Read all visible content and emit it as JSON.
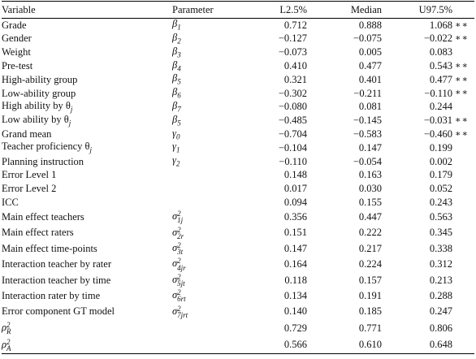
{
  "table": {
    "header": [
      "Variable",
      "Parameter",
      "L2.5%",
      "Median",
      "U97.5%"
    ],
    "rows": [
      {
        "variable": "Grade",
        "parameter": {
          "base": "β",
          "sub": "1"
        },
        "l": "0.712",
        "median": "0.888",
        "u": "1.068",
        "sig": "∗∗"
      },
      {
        "variable": "Gender",
        "parameter": {
          "base": "β",
          "sub": "2"
        },
        "l": "−0.127",
        "median": "−0.075",
        "u": "−0.022",
        "sig": "∗∗"
      },
      {
        "variable": "Weight",
        "parameter": {
          "base": "β",
          "sub": "3"
        },
        "l": "−0.073",
        "median": "0.005",
        "u": "0.083"
      },
      {
        "variable": "Pre-test",
        "parameter": {
          "base": "β",
          "sub": "4"
        },
        "l": "0.410",
        "median": "0.477",
        "u": "0.543",
        "sig": "∗∗"
      },
      {
        "variable": "High-ability group",
        "parameter": {
          "base": "β",
          "sub": "5"
        },
        "l": "0.321",
        "median": "0.401",
        "u": "0.477",
        "sig": "∗∗"
      },
      {
        "variable": "Low-ability group",
        "parameter": {
          "base": "β",
          "sub": "6"
        },
        "l": "−0.302",
        "median": "−0.211",
        "u": "−0.110",
        "sig": "∗∗"
      },
      {
        "variable": {
          "text": "High ability by θ",
          "sub": "j"
        },
        "parameter": {
          "base": "β",
          "sub": "7"
        },
        "l": "−0.080",
        "median": "0.081",
        "u": "0.244"
      },
      {
        "variable": {
          "text": "Low ability by θ",
          "sub": "j"
        },
        "parameter": {
          "base": "β",
          "sub": "5"
        },
        "l": "−0.485",
        "median": "−0.145",
        "u": "−0.031",
        "sig": "∗∗"
      },
      {
        "variable": "Grand mean",
        "parameter": {
          "base": "γ",
          "sub": "0"
        },
        "l": "−0.704",
        "median": "−0.583",
        "u": "−0.460",
        "sig": "∗∗"
      },
      {
        "variable": {
          "text": "Teacher proficiency θ",
          "sub": "j"
        },
        "parameter": {
          "base": "γ",
          "sub": "1"
        },
        "l": "−0.104",
        "median": "0.147",
        "u": "0.199"
      },
      {
        "variable": "Planning instruction",
        "parameter": {
          "base": "γ",
          "sub": "2"
        },
        "l": "−0.110",
        "median": "−0.054",
        "u": "0.002"
      },
      {
        "variable": "Error Level 1",
        "l": "0.148",
        "median": "0.163",
        "u": "0.179"
      },
      {
        "variable": "Error Level 2",
        "l": "0.017",
        "median": "0.030",
        "u": "0.052"
      },
      {
        "variable": "ICC",
        "l": "0.094",
        "median": "0.155",
        "u": "0.243"
      },
      {
        "variable": "Main effect teachers",
        "parameter": {
          "base": "σ",
          "sup": "2",
          "sub": "1j"
        },
        "l": "0.356",
        "median": "0.447",
        "u": "0.563"
      },
      {
        "variable": "Main effect raters",
        "parameter": {
          "base": "σ",
          "sup": "2",
          "sub": "2r"
        },
        "l": "0.151",
        "median": "0.222",
        "u": "0.345"
      },
      {
        "variable": "Main effect time-points",
        "parameter": {
          "base": "σ",
          "sup": "2",
          "sub": "3t"
        },
        "l": "0.147",
        "median": "0.217",
        "u": "0.338"
      },
      {
        "variable": "Interaction teacher by rater",
        "parameter": {
          "base": "σ",
          "sup": "2",
          "sub": "4jr"
        },
        "l": "0.164",
        "median": "0.224",
        "u": "0.312"
      },
      {
        "variable": "Interaction teacher by time",
        "parameter": {
          "base": "σ",
          "sup": "2",
          "sub": "5jt"
        },
        "l": "0.118",
        "median": "0.157",
        "u": "0.213"
      },
      {
        "variable": "Interaction rater by time",
        "parameter": {
          "base": "σ",
          "sup": "2",
          "sub": "6rt"
        },
        "l": "0.134",
        "median": "0.191",
        "u": "0.288"
      },
      {
        "variable": "Error component GT model",
        "parameter": {
          "base": "σ",
          "sup": "2",
          "sub": "7jrt"
        },
        "l": "0.140",
        "median": "0.185",
        "u": "0.247"
      },
      {
        "variable": {
          "base": "ρ",
          "sup": "2",
          "sub": "R"
        },
        "l": "0.729",
        "median": "0.771",
        "u": "0.806"
      },
      {
        "variable": {
          "base": "ρ",
          "sup": "2",
          "sub": "A"
        },
        "l": "0.566",
        "median": "0.610",
        "u": "0.648"
      }
    ]
  }
}
